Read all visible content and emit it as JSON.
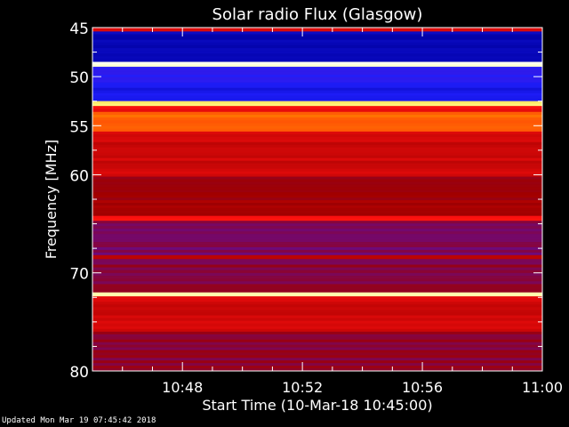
{
  "chart_data": {
    "type": "heatmap",
    "title": "Solar radio Flux (Glasgow)",
    "xlabel": "Start Time (10-Mar-18 10:45:00)",
    "ylabel": "Frequency [MHz]",
    "xlim_minutes": [
      "10:45",
      "11:00"
    ],
    "ylim": [
      45,
      80
    ],
    "y_inverted": true,
    "x_ticks": [
      "10:48",
      "10:52",
      "10:56",
      "11:00"
    ],
    "y_ticks": [
      45,
      50,
      55,
      60,
      70,
      80
    ],
    "colormap": [
      "#000000",
      "#0000a0",
      "#2020ff",
      "#5010c0",
      "#a00000",
      "#ff1010",
      "#ff8000",
      "#ffff80",
      "#ffffff"
    ],
    "bands": [
      {
        "f0": 45.0,
        "f1": 45.4,
        "level": 0.6
      },
      {
        "f0": 45.4,
        "f1": 48.5,
        "level": 0.15
      },
      {
        "f0": 48.5,
        "f1": 49.0,
        "level": 0.97
      },
      {
        "f0": 49.0,
        "f1": 50.6,
        "level": 0.28
      },
      {
        "f0": 50.6,
        "f1": 52.5,
        "level": 0.22
      },
      {
        "f0": 52.5,
        "f1": 53.0,
        "level": 0.85
      },
      {
        "f0": 53.0,
        "f1": 53.6,
        "level": 0.6
      },
      {
        "f0": 53.6,
        "f1": 55.6,
        "level": 0.72
      },
      {
        "f0": 55.6,
        "f1": 60.2,
        "level": 0.56
      },
      {
        "f0": 60.2,
        "f1": 64.2,
        "level": 0.5
      },
      {
        "f0": 64.2,
        "f1": 64.7,
        "level": 0.62
      },
      {
        "f0": 64.7,
        "f1": 68.2,
        "level": 0.44
      },
      {
        "f0": 68.2,
        "f1": 68.6,
        "level": 0.54
      },
      {
        "f0": 68.6,
        "f1": 72.0,
        "level": 0.46
      },
      {
        "f0": 72.0,
        "f1": 72.4,
        "level": 0.9
      },
      {
        "f0": 72.4,
        "f1": 76.0,
        "level": 0.57
      },
      {
        "f0": 76.0,
        "f1": 80.0,
        "level": 0.47
      }
    ]
  },
  "footer": {
    "updated": "Updated Mon Mar 19 07:45:42 2018"
  }
}
